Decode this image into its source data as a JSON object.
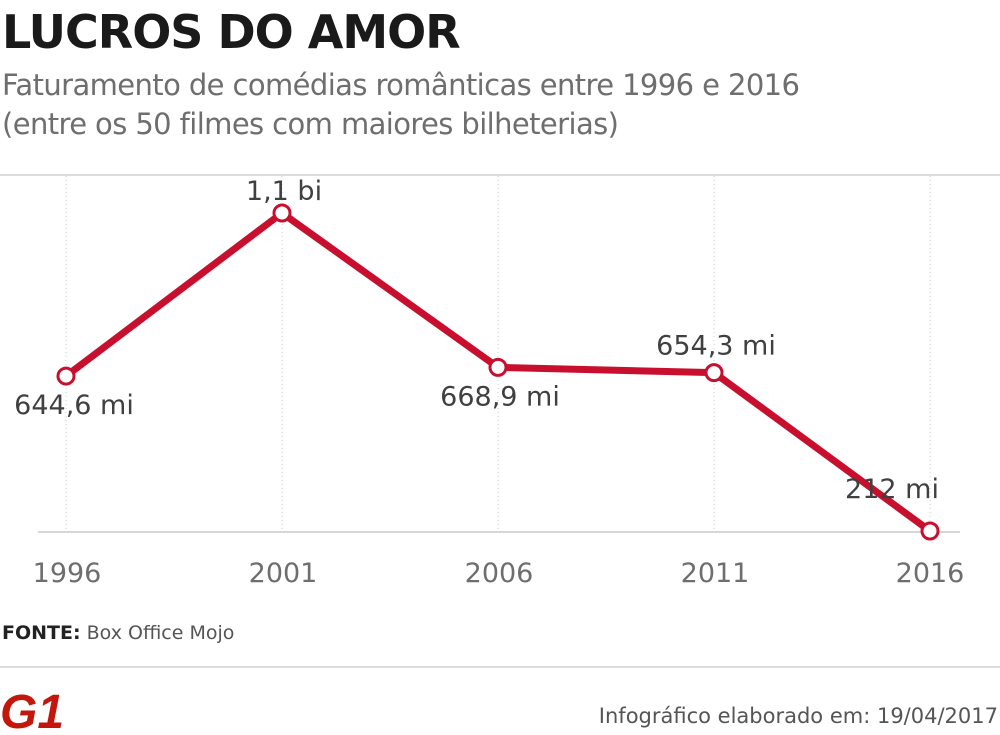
{
  "title": "LUCROS DO AMOR",
  "subtitle_line1": "Faturamento de comédias românticas entre 1996 e 2016",
  "subtitle_line2": "(entre os 50 filmes com maiores bilheterias)",
  "source_label": "FONTE:",
  "source_value": "Box Office Mojo",
  "logo_text": "G1",
  "credit": "Infográfico elaborado em: 19/04/2017",
  "colors": {
    "line": "#c8102e",
    "logo": "#c4170c"
  },
  "chart_data": {
    "type": "line",
    "title": "",
    "xlabel": "",
    "ylabel": "",
    "x": [
      "1996",
      "2001",
      "2006",
      "2011",
      "2016"
    ],
    "series": [
      {
        "values": [
          644.6,
          1100,
          668.9,
          654.3,
          212
        ]
      }
    ],
    "data_labels": [
      "644,6 mi",
      "1,1 bi",
      "668,9 mi",
      "654,3 mi",
      "212 mi"
    ],
    "ylim": [
      212,
      1100
    ],
    "grid": "vertical-dotted",
    "legend": "none"
  }
}
